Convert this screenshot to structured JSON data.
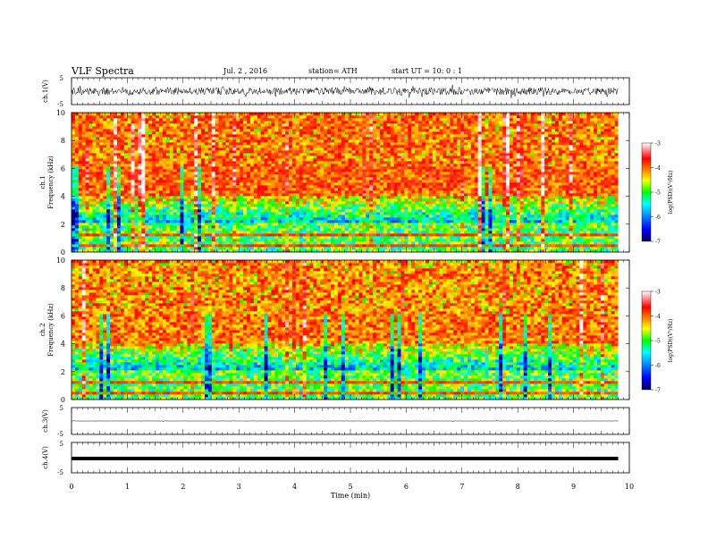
{
  "header": {
    "title": "VLF  Spectra",
    "date": "Jul.  2  , 2016",
    "station": "station= ATH",
    "start": "start  UT  =    10: 0  : 1"
  },
  "chart_data": [
    {
      "type": "line",
      "id": "ch1-waveform",
      "ylabel": "ch.1(V)",
      "ylim": [
        -5,
        5
      ],
      "yticks": [
        "5",
        "-5"
      ],
      "description_values": {
        "x_range_min": [
          0,
          9.8
        ],
        "amplitude_band_V": [
          -1.3,
          1.3
        ]
      }
    },
    {
      "type": "heatmap",
      "id": "ch1-spectrogram",
      "ylabel": "ch.1\nFrequency  (kHz)",
      "ylabel_lines": [
        "ch.1",
        "Frequency  (kHz)"
      ],
      "ylim": [
        0,
        10
      ],
      "yticks": [
        "0",
        "2",
        "4",
        "6",
        "8",
        "10"
      ],
      "xlim": [
        0,
        9.8
      ],
      "colorbar": {
        "label": "log(PSD)(V²/Hz)",
        "range": [
          -7,
          -3
        ],
        "ticks": [
          "-3",
          "-4",
          "-5",
          "-6",
          "-7"
        ]
      }
    },
    {
      "type": "heatmap",
      "id": "ch2-spectrogram",
      "ylabel": "ch.2\nFrequency  (kHz)",
      "ylabel_lines": [
        "ch.2",
        "Frequency  (kHz)"
      ],
      "ylim": [
        0,
        10
      ],
      "yticks": [
        "0",
        "2",
        "4",
        "6",
        "8",
        "10"
      ],
      "xlim": [
        0,
        9.8
      ],
      "colorbar": {
        "label": "log(PSD)(V²/Hz)",
        "range": [
          -7,
          -3
        ],
        "ticks": [
          "-3",
          "-4",
          "-5",
          "-6",
          "-7"
        ]
      }
    },
    {
      "type": "line",
      "id": "ch3-waveform",
      "ylabel": "ch.3(V)",
      "ylim": [
        -5,
        5
      ],
      "yticks": [
        "5",
        "-5"
      ]
    },
    {
      "type": "line",
      "id": "ch4-waveform",
      "ylabel": "ch.4(V)",
      "ylim": [
        -5,
        5
      ],
      "yticks": [
        "5",
        "-5"
      ]
    }
  ],
  "xaxis": {
    "label": "Time  (min)",
    "ticks": [
      "0",
      "1",
      "2",
      "3",
      "4",
      "5",
      "6",
      "7",
      "8",
      "9",
      "10"
    ],
    "range": [
      0,
      10
    ]
  },
  "colors": {
    "spectrum_high": "#e00000",
    "spectrum_mid": "#ffff00",
    "spectrum_green": "#00ee00",
    "spectrum_cyan": "#00ffff",
    "spectrum_low": "#0000cc",
    "trace": "#000000"
  }
}
